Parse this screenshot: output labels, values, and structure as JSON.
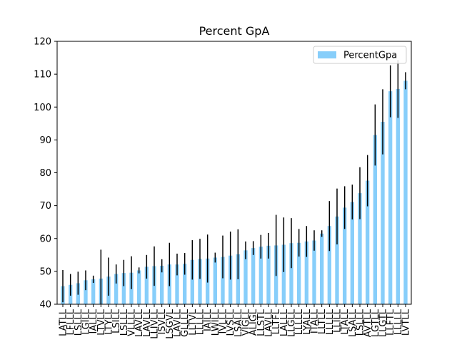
{
  "chart_data": {
    "type": "bar",
    "title": "Percent GpA",
    "xlabel": "",
    "ylabel": "",
    "ylim": [
      40,
      120
    ],
    "yticks": [
      40,
      50,
      60,
      70,
      80,
      90,
      100,
      110,
      120
    ],
    "legend": {
      "position": "top-right",
      "entries": [
        "PercentGpa"
      ]
    },
    "bar_color": "#87cefa",
    "error_bar_color": "#000000",
    "categories": [
      "LATLL",
      "LFLLL",
      "LSLLL",
      "LGILL",
      "IALLL",
      "LTVLL",
      "LTYLL",
      "LSILL",
      "LSLLL",
      "VLLLL",
      "LAVLL",
      "LAVLL",
      "LLIVLL",
      "ISVLL",
      "LSGVL",
      "LAVLL",
      "GLLLL",
      "LLTVL",
      "LLLLL",
      "IAILL",
      "LWILL",
      "IVLLL",
      "LVSLL",
      "LSALL",
      "VIGLL",
      "ALIGL",
      "LLSTL",
      "LAVLL",
      "LLTFL",
      "LALLL",
      "LLGLL",
      "LLLLL",
      "LYALL",
      "ITALL",
      "LLTLL",
      "LLLLL",
      "LLILL",
      "LTALL",
      "LSALL",
      "LSLLL",
      "AVTLL",
      "LGTLL",
      "LLGTL",
      "LLFTL",
      "LLLLL",
      "LVTLL"
    ],
    "series": [
      {
        "name": "PercentGpa",
        "values": [
          45.5,
          45.9,
          46.4,
          47.3,
          47.6,
          47.8,
          48.4,
          49.2,
          49.5,
          49.6,
          50.3,
          51.4,
          51.6,
          51.7,
          52.1,
          52.1,
          52.3,
          53.5,
          53.8,
          53.9,
          54.2,
          54.4,
          54.8,
          55.2,
          56.4,
          57.1,
          57.5,
          57.8,
          57.9,
          58.1,
          58.6,
          58.7,
          59.1,
          59.4,
          61.5,
          63.8,
          66.7,
          69.4,
          71.1,
          73.8,
          77.6,
          91.5,
          95.5,
          104.8,
          105.5,
          108.0
        ],
        "errors": [
          4.9,
          3.3,
          3.5,
          3.0,
          1.1,
          8.8,
          5.8,
          2.9,
          4.0,
          5.0,
          0.9,
          3.6,
          6.0,
          2.0,
          6.6,
          3.3,
          3.3,
          6.0,
          6.1,
          7.3,
          1.5,
          6.5,
          7.3,
          7.6,
          2.7,
          2.1,
          3.6,
          3.9,
          9.3,
          8.3,
          7.6,
          4.2,
          4.7,
          3.1,
          1.0,
          7.6,
          8.5,
          6.5,
          5.3,
          7.9,
          7.8,
          9.3,
          9.9,
          7.9,
          8.8,
          2.6
        ]
      }
    ]
  }
}
